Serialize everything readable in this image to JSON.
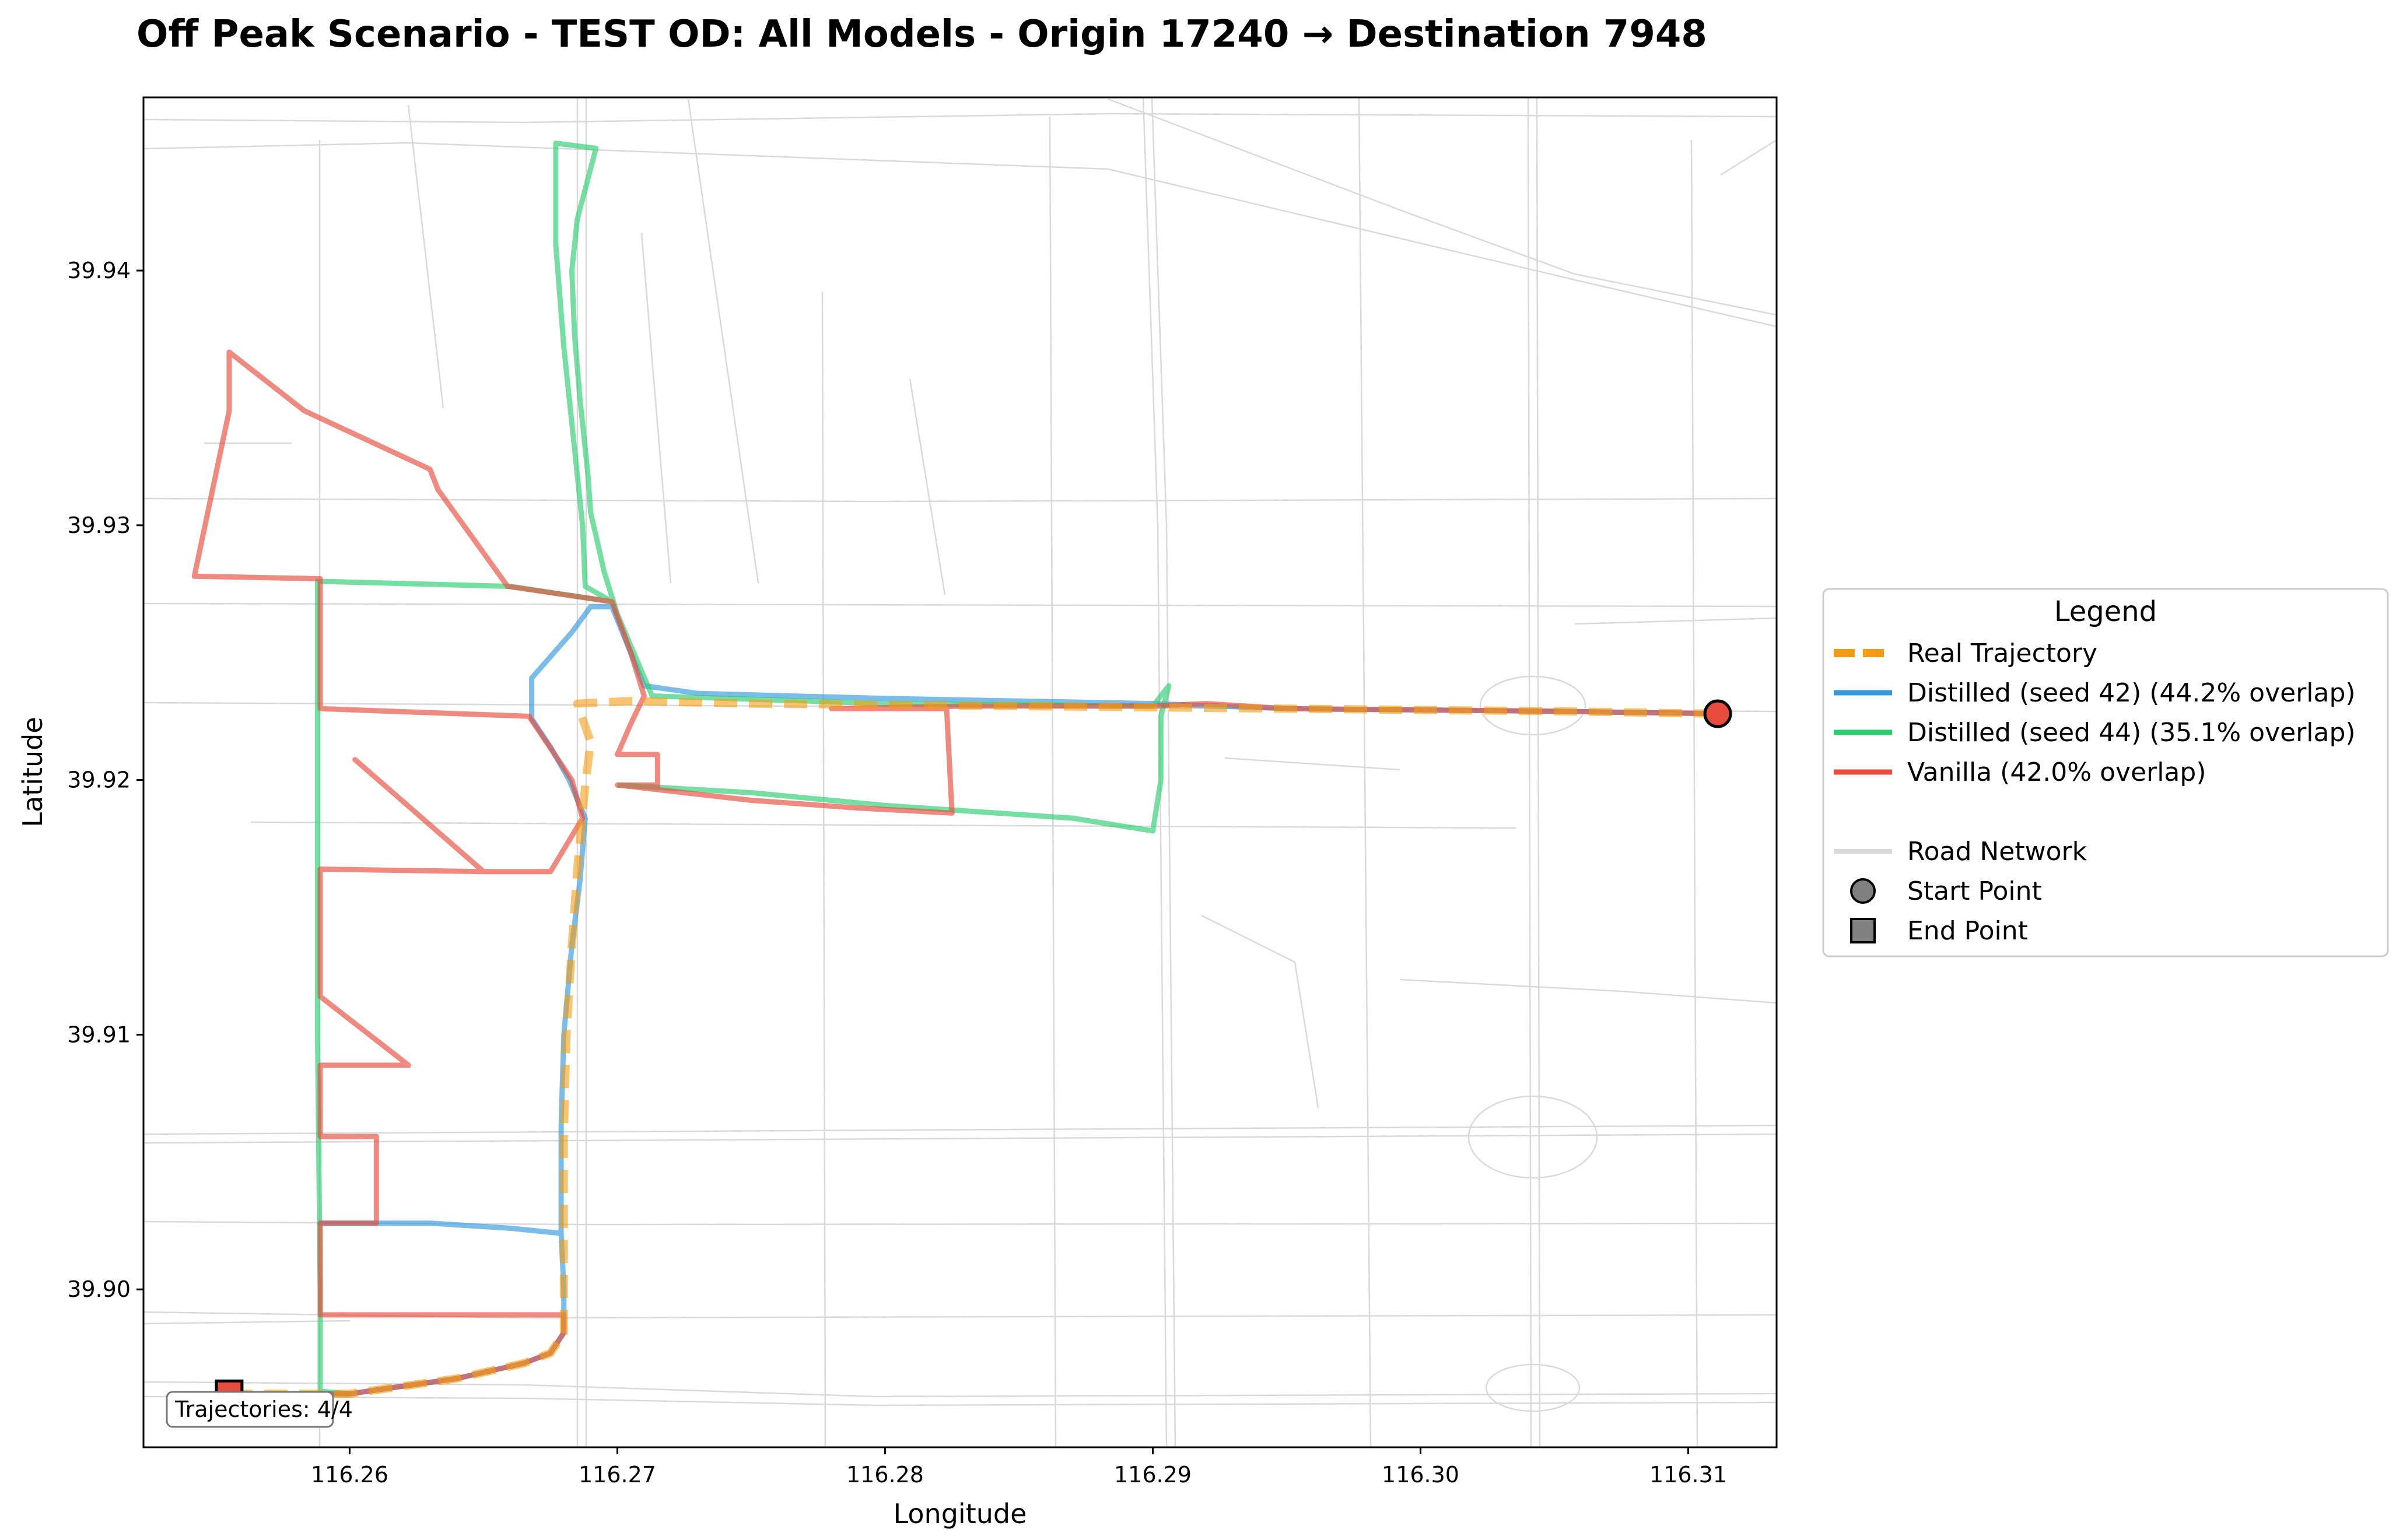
{
  "chart_data": {
    "type": "line",
    "title": "Off Peak Scenario - TEST OD: All Models - Origin 17240 → Destination 7948",
    "xlabel": "Longitude",
    "ylabel": "Latitude",
    "xlim": [
      116.2523,
      116.3133
    ],
    "ylim": [
      39.8938,
      39.9468
    ],
    "xticks": [
      116.26,
      116.27,
      116.28,
      116.29,
      116.3,
      116.31
    ],
    "xtick_labels": [
      "116.26",
      "116.27",
      "116.28",
      "116.29",
      "116.30",
      "116.31"
    ],
    "yticks": [
      39.9,
      39.91,
      39.92,
      39.93,
      39.94
    ],
    "ytick_labels": [
      "39.90",
      "39.91",
      "39.92",
      "39.93",
      "39.94"
    ],
    "grid": false,
    "legend_position": "right",
    "legend_title": "Legend",
    "series": [
      {
        "name": "Real Trajectory",
        "color": "#f39c12",
        "style": "dashed",
        "points": [
          [
            116.2555,
            39.8959
          ],
          [
            116.26,
            39.8959
          ],
          [
            116.264,
            39.8965
          ],
          [
            116.2665,
            39.8971
          ],
          [
            116.2675,
            39.8975
          ],
          [
            116.268,
            39.8983
          ],
          [
            116.268,
            39.9
          ],
          [
            116.268,
            39.906
          ],
          [
            116.2681,
            39.91
          ],
          [
            116.2683,
            39.9135
          ],
          [
            116.2685,
            39.9165
          ],
          [
            116.2688,
            39.9198
          ],
          [
            116.269,
            39.9215
          ],
          [
            116.2685,
            39.923
          ],
          [
            116.2705,
            39.9231
          ],
          [
            116.275,
            39.923
          ],
          [
            116.285,
            39.9229
          ],
          [
            116.295,
            39.9228
          ],
          [
            116.305,
            39.9227
          ],
          [
            116.3111,
            39.9226
          ]
        ]
      },
      {
        "name": "Distilled (seed 42) (44.2% overlap)",
        "color": "#3498db",
        "style": "solid",
        "points": [
          [
            116.2555,
            39.8959
          ],
          [
            116.26,
            39.8959
          ],
          [
            116.264,
            39.8965
          ],
          [
            116.2665,
            39.8971
          ],
          [
            116.2675,
            39.8975
          ],
          [
            116.268,
            39.8983
          ],
          [
            116.268,
            39.9
          ],
          [
            116.2679,
            39.9022
          ],
          [
            116.266,
            39.9024
          ],
          [
            116.263,
            39.9026
          ],
          [
            116.2589,
            39.9026
          ],
          [
            116.263,
            39.9026
          ],
          [
            116.266,
            39.9024
          ],
          [
            116.2679,
            39.9022
          ],
          [
            116.2679,
            39.9065
          ],
          [
            116.268,
            39.91
          ],
          [
            116.2683,
            39.9135
          ],
          [
            116.2686,
            39.916
          ],
          [
            116.2688,
            39.9185
          ],
          [
            116.2682,
            39.92
          ],
          [
            116.2675,
            39.9213
          ],
          [
            116.2668,
            39.9224
          ],
          [
            116.2668,
            39.924
          ],
          [
            116.2683,
            39.9258
          ],
          [
            116.269,
            39.9268
          ],
          [
            116.2698,
            39.9268
          ],
          [
            116.271,
            39.9237
          ],
          [
            116.273,
            39.9234
          ],
          [
            116.28,
            39.9232
          ],
          [
            116.29,
            39.923
          ],
          [
            116.295,
            39.9228
          ],
          [
            116.305,
            39.9227
          ],
          [
            116.3111,
            39.9226
          ]
        ]
      },
      {
        "name": "Distilled (seed 44) (35.1% overlap)",
        "color": "#2ecc71",
        "style": "solid",
        "points": [
          [
            116.2555,
            39.8959
          ],
          [
            116.26,
            39.8959
          ],
          [
            116.2589,
            39.896
          ],
          [
            116.2589,
            39.9
          ],
          [
            116.2588,
            39.91
          ],
          [
            116.2588,
            39.9228
          ],
          [
            116.2588,
            39.9278
          ],
          [
            116.266,
            39.9276
          ],
          [
            116.2698,
            39.927
          ],
          [
            116.2688,
            39.9276
          ],
          [
            116.2687,
            39.93
          ],
          [
            116.268,
            39.937
          ],
          [
            116.2677,
            39.941
          ],
          [
            116.2677,
            39.945
          ],
          [
            116.2692,
            39.9448
          ],
          [
            116.2685,
            39.942
          ],
          [
            116.2683,
            39.94
          ],
          [
            116.2684,
            39.9375
          ],
          [
            116.2686,
            39.935
          ],
          [
            116.2689,
            39.932
          ],
          [
            116.269,
            39.9305
          ],
          [
            116.2692,
            39.9296
          ],
          [
            116.2695,
            39.9282
          ],
          [
            116.27,
            39.9265
          ],
          [
            116.2713,
            39.9233
          ],
          [
            116.28,
            39.923
          ],
          [
            116.29,
            39.9229
          ],
          [
            116.2906,
            39.9237
          ],
          [
            116.2903,
            39.9225
          ],
          [
            116.2903,
            39.92
          ],
          [
            116.29,
            39.918
          ],
          [
            116.287,
            39.9185
          ],
          [
            116.28,
            39.919
          ],
          [
            116.275,
            39.9195
          ],
          [
            116.27,
            39.9198
          ]
        ]
      },
      {
        "name": "Vanilla (42.0% overlap)",
        "color": "#e74c3c",
        "style": "solid",
        "points": [
          [
            116.2555,
            39.8959
          ],
          [
            116.26,
            39.8959
          ],
          [
            116.264,
            39.8965
          ],
          [
            116.2665,
            39.8971
          ],
          [
            116.2675,
            39.8975
          ],
          [
            116.268,
            39.8983
          ],
          [
            116.268,
            39.899
          ],
          [
            116.2589,
            39.899
          ],
          [
            116.2589,
            39.9026
          ],
          [
            116.261,
            39.9026
          ],
          [
            116.261,
            39.906
          ],
          [
            116.2589,
            39.906
          ],
          [
            116.2589,
            39.9088
          ],
          [
            116.2622,
            39.9088
          ],
          [
            116.2589,
            39.9115
          ],
          [
            116.2589,
            39.9165
          ],
          [
            116.265,
            39.9164
          ],
          [
            116.2602,
            39.9208
          ],
          [
            116.265,
            39.9164
          ],
          [
            116.2675,
            39.9164
          ],
          [
            116.2687,
            39.9185
          ],
          [
            116.2683,
            39.92
          ],
          [
            116.2667,
            39.9225
          ],
          [
            116.2589,
            39.9228
          ],
          [
            116.2589,
            39.9279
          ],
          [
            116.2542,
            39.928
          ],
          [
            116.255,
            39.932
          ],
          [
            116.2555,
            39.9345
          ],
          [
            116.2555,
            39.9368
          ],
          [
            116.2583,
            39.9345
          ],
          [
            116.263,
            39.9322
          ],
          [
            116.2633,
            39.9314
          ],
          [
            116.2659,
            39.9276
          ],
          [
            116.2698,
            39.927
          ],
          [
            116.2705,
            39.925
          ],
          [
            116.271,
            39.9233
          ],
          [
            116.2705,
            39.9222
          ],
          [
            116.27,
            39.921
          ],
          [
            116.2715,
            39.921
          ],
          [
            116.2715,
            39.9198
          ],
          [
            116.27,
            39.9198
          ],
          [
            116.275,
            39.9192
          ],
          [
            116.279,
            39.9189
          ],
          [
            116.2825,
            39.9187
          ],
          [
            116.2823,
            39.9228
          ],
          [
            116.278,
            39.9228
          ],
          [
            116.283,
            39.9229
          ],
          [
            116.29,
            39.9229
          ],
          [
            116.292,
            39.923
          ],
          [
            116.295,
            39.9228
          ],
          [
            116.305,
            39.9227
          ],
          [
            116.3111,
            39.9226
          ]
        ]
      }
    ],
    "road_network": {
      "name": "Road Network",
      "color": "#d9d9d9"
    },
    "start_point": {
      "name": "Start Point",
      "lon": 116.3111,
      "lat": 39.9226,
      "marker": "circle",
      "color": "#e74c3c"
    },
    "end_point": {
      "name": "End Point",
      "lon": 116.2555,
      "lat": 39.8959,
      "marker": "square",
      "color": "#e74c3c"
    },
    "annotation": "Trajectories: 4/4"
  }
}
